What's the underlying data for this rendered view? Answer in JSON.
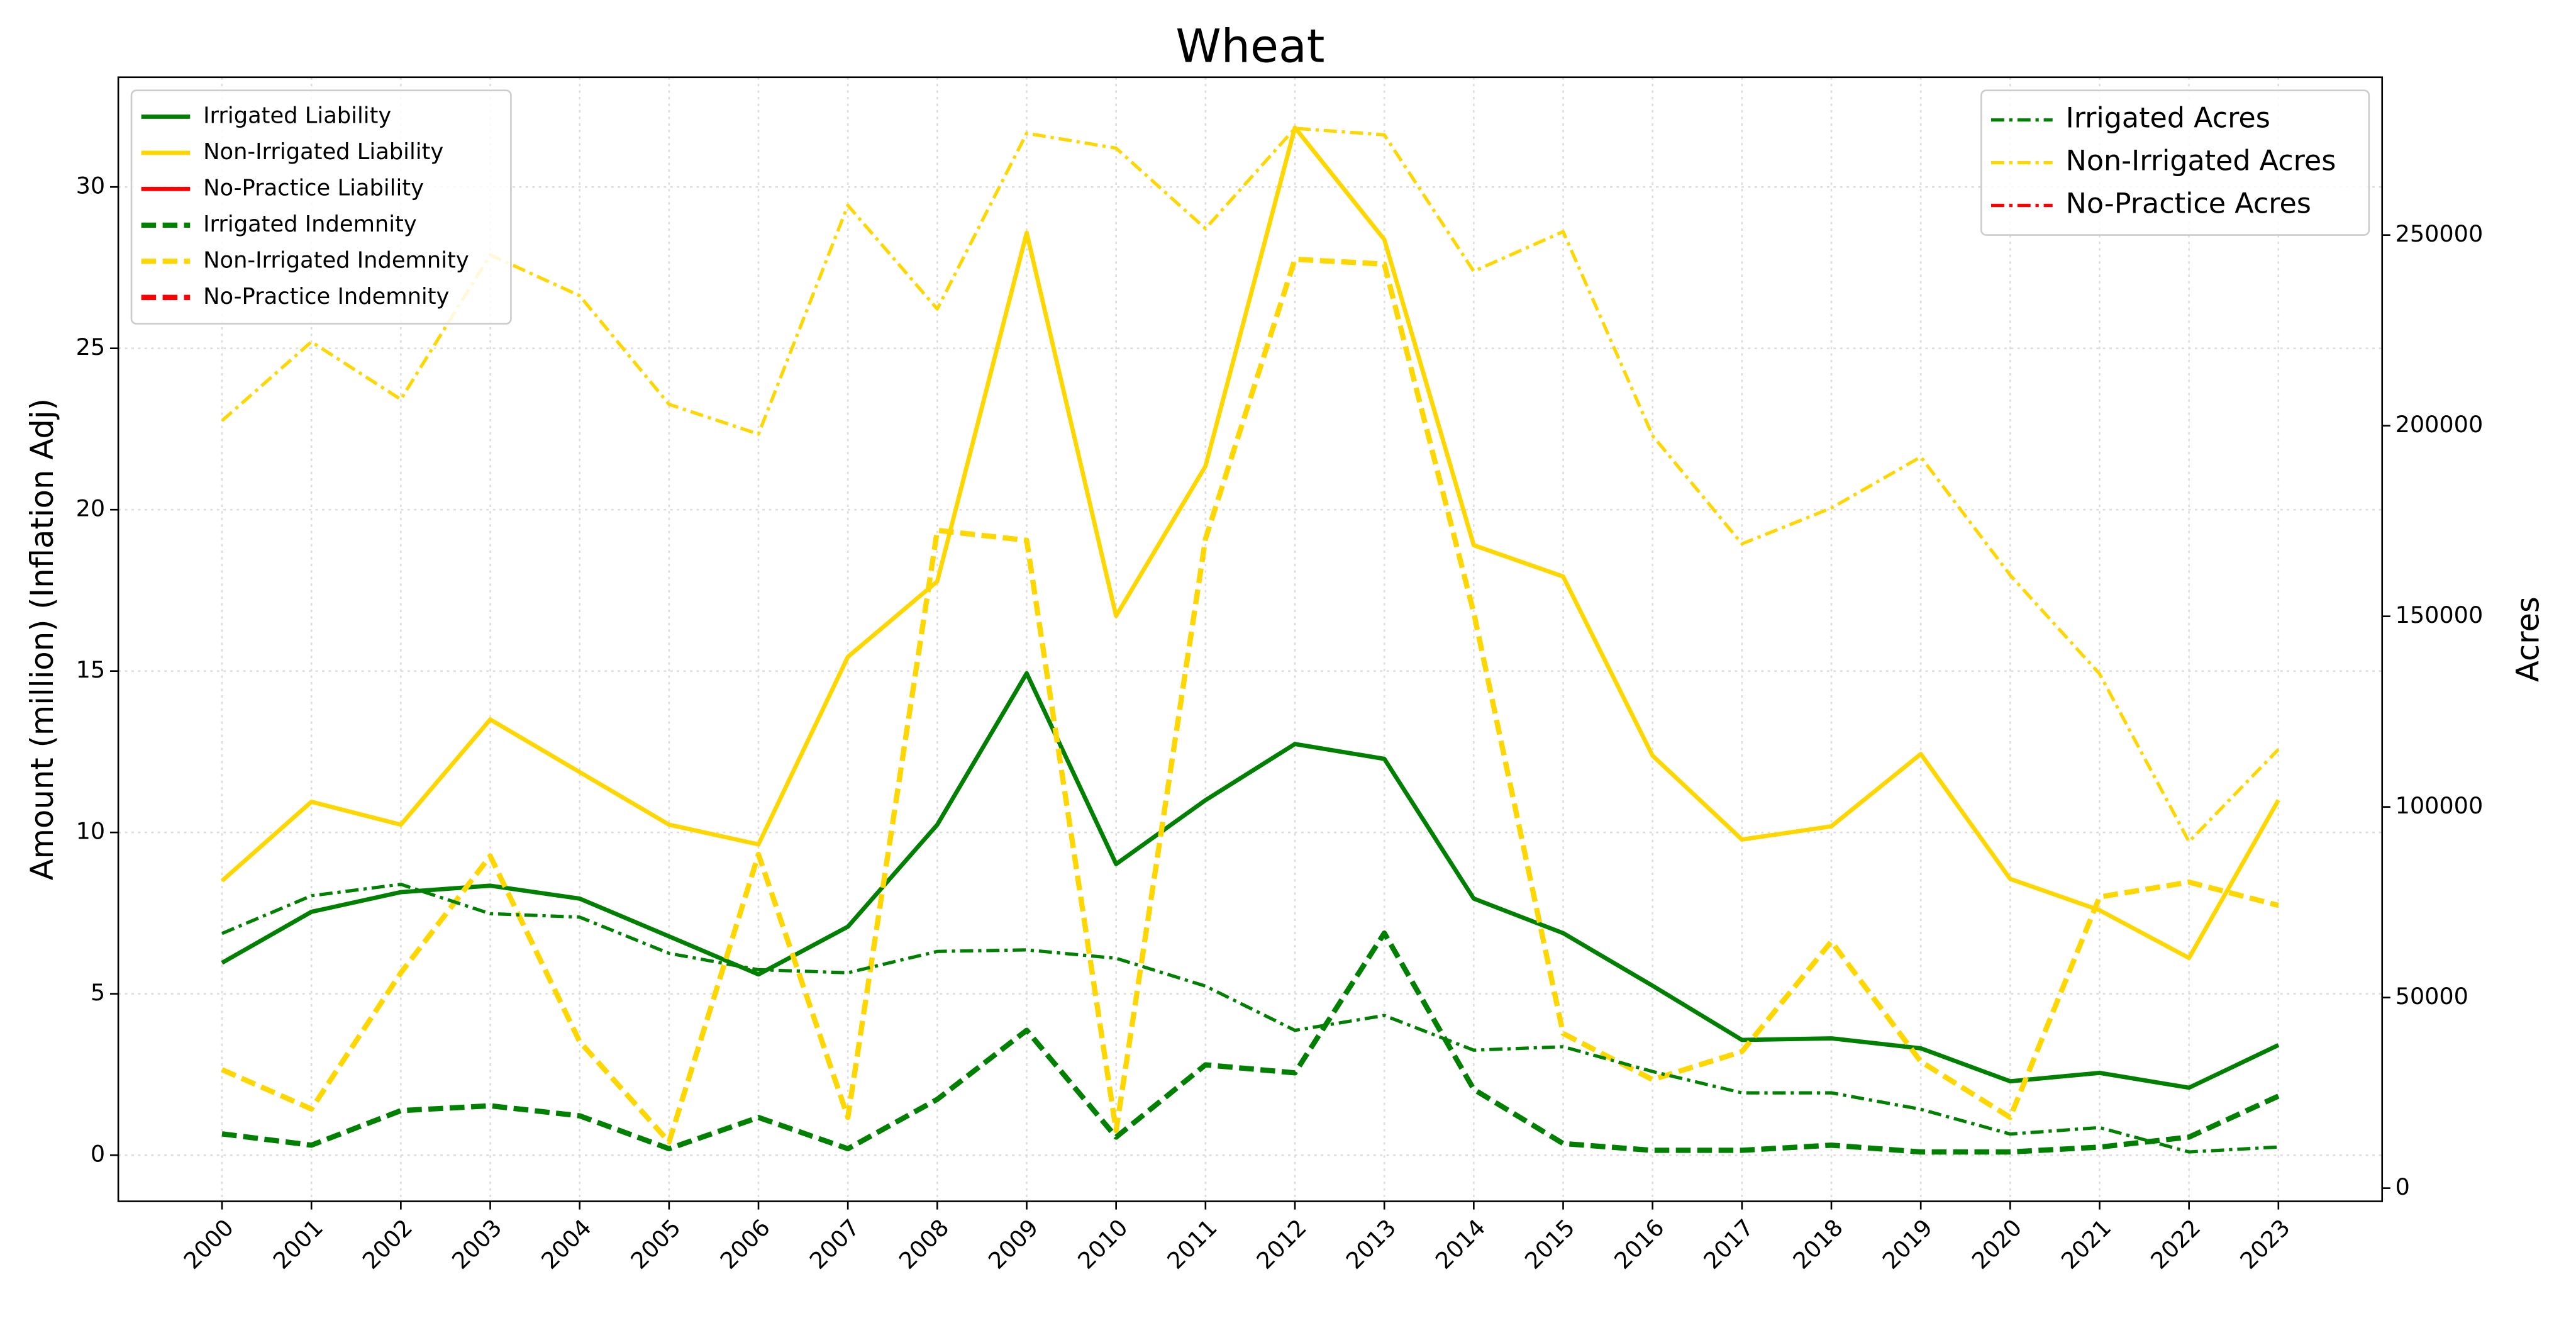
{
  "chart_data": {
    "type": "line",
    "title": "Wheat",
    "ylabel": "Amount (million) (Inflation Adj)",
    "y2label": "Acres",
    "x": [
      2000,
      2001,
      2002,
      2003,
      2004,
      2005,
      2006,
      2007,
      2008,
      2009,
      2010,
      2011,
      2012,
      2013,
      2014,
      2015,
      2016,
      2017,
      2018,
      2019,
      2020,
      2021,
      2022,
      2023
    ],
    "xlim": [
      1998.84,
      2024.16
    ],
    "xticks": [
      2000,
      2001,
      2002,
      2003,
      2004,
      2005,
      2006,
      2007,
      2008,
      2009,
      2010,
      2011,
      2012,
      2013,
      2014,
      2015,
      2016,
      2017,
      2018,
      2019,
      2020,
      2021,
      2022,
      2023
    ],
    "ylim": [
      -1.43,
      33.4
    ],
    "yticks": [
      0,
      5,
      10,
      15,
      20,
      25,
      30
    ],
    "y2lim": [
      -3450,
      291400
    ],
    "y2ticks": [
      0,
      50000,
      100000,
      150000,
      200000,
      250000
    ],
    "grid": true,
    "legend_loc": "upper left",
    "legend2_loc": "upper right",
    "series": [
      {
        "name": "Irrigated Liability",
        "color": "#008000",
        "linestyle": "solid",
        "values": [
          5.96,
          7.54,
          8.15,
          8.35,
          7.95,
          6.78,
          5.6,
          7.08,
          10.24,
          14.93,
          9.02,
          11.0,
          12.74,
          12.28,
          7.95,
          6.88,
          5.25,
          3.57,
          3.62,
          3.31,
          2.29,
          2.55,
          2.09,
          3.41
        ]
      },
      {
        "name": "Non-Irrigated Liability",
        "color": "#ffd700",
        "linestyle": "solid",
        "values": [
          8.5,
          10.95,
          10.24,
          13.5,
          11.87,
          10.24,
          9.63,
          15.44,
          17.78,
          28.58,
          16.71,
          21.35,
          31.84,
          28.37,
          18.9,
          17.93,
          12.38,
          9.78,
          10.19,
          12.43,
          8.56,
          7.59,
          6.11,
          11.0
        ]
      },
      {
        "name": "No-Practice Liability",
        "color": "#ff0000",
        "linestyle": "solid",
        "values": [
          null,
          null,
          null,
          null,
          null,
          null,
          null,
          null,
          null,
          null,
          null,
          null,
          null,
          null,
          null,
          null,
          null,
          null,
          null,
          null,
          null,
          null,
          null,
          null
        ]
      },
      {
        "name": "Irrigated Indemnity",
        "color": "#008000",
        "linestyle": "dashed",
        "values": [
          0.66,
          0.31,
          1.38,
          1.53,
          1.22,
          0.2,
          1.17,
          0.2,
          1.73,
          3.87,
          0.56,
          2.8,
          2.55,
          6.88,
          2.04,
          0.36,
          0.15,
          0.15,
          0.31,
          0.1,
          0.1,
          0.25,
          0.56,
          1.83
        ]
      },
      {
        "name": "Non-Irrigated Indemnity",
        "color": "#ffd700",
        "linestyle": "dashed",
        "values": [
          2.65,
          1.43,
          5.65,
          9.27,
          3.52,
          0.41,
          9.32,
          1.17,
          19.36,
          19.05,
          0.76,
          19.1,
          27.76,
          27.61,
          16.81,
          3.77,
          2.34,
          3.21,
          6.62,
          2.9,
          1.17,
          8.0,
          8.46,
          7.74
        ]
      },
      {
        "name": "No-Practice Indemnity",
        "color": "#ff0000",
        "linestyle": "dashed",
        "values": [
          null,
          null,
          null,
          null,
          null,
          null,
          null,
          null,
          null,
          null,
          null,
          null,
          null,
          null,
          null,
          null,
          null,
          null,
          null,
          null,
          null,
          null,
          null,
          null
        ]
      },
      {
        "name": "Irrigated Acres",
        "color": "#008000",
        "linestyle": "dashdot",
        "axis": "y2",
        "values": [
          66800,
          76700,
          79700,
          72000,
          71100,
          61600,
          57300,
          56500,
          62100,
          62500,
          60300,
          53000,
          41400,
          45300,
          36200,
          37100,
          30600,
          25000,
          25000,
          20700,
          14200,
          15900,
          9500,
          10800
        ]
      },
      {
        "name": "Non-Irrigated Acres",
        "color": "#ffd700",
        "linestyle": "dashdot",
        "axis": "y2",
        "values": [
          201300,
          222000,
          206900,
          244800,
          234100,
          205600,
          197800,
          257800,
          230600,
          276700,
          272800,
          251700,
          278000,
          276300,
          240500,
          250900,
          197400,
          169000,
          178400,
          191800,
          160800,
          134900,
          90900,
          115100
        ]
      },
      {
        "name": "No-Practice Acres",
        "color": "#ff0000",
        "linestyle": "dashdot",
        "axis": "y2",
        "values": [
          null,
          null,
          null,
          null,
          null,
          null,
          null,
          null,
          null,
          null,
          null,
          null,
          null,
          null,
          null,
          null,
          null,
          null,
          null,
          null,
          null,
          null,
          null,
          null
        ]
      }
    ]
  }
}
